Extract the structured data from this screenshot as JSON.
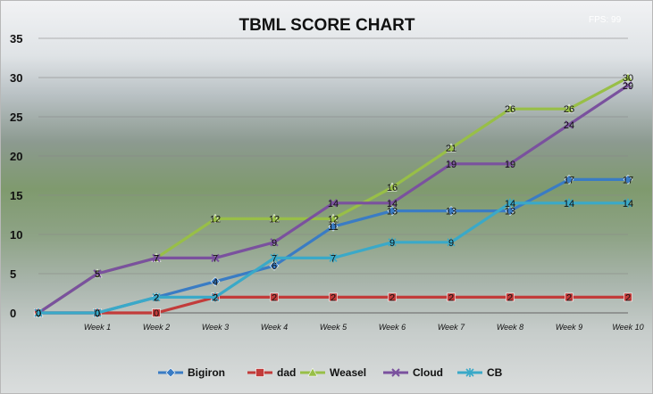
{
  "hud": {
    "fps_text": "FPS: 99"
  },
  "chart_data": {
    "type": "line",
    "title": "TBML SCORE CHART",
    "xlabel": "",
    "ylabel": "",
    "categories": [
      "",
      "Week  1",
      "Week 2",
      "Week 3",
      "Week 4",
      "Week 5",
      "Week 6",
      "Week 7",
      "Week 8",
      "Week 9",
      "Week 10"
    ],
    "ylim": [
      0,
      35
    ],
    "yticks": [
      0,
      5,
      10,
      15,
      20,
      25,
      30,
      35
    ],
    "grid": true,
    "legend_position": "bottom",
    "series": [
      {
        "name": "Bigiron",
        "color": "#3a7cc4",
        "marker": "diamond",
        "values": [
          0,
          0,
          2,
          4,
          6,
          11,
          13,
          13,
          13,
          17,
          17
        ]
      },
      {
        "name": "dad",
        "color": "#c23b3a",
        "marker": "square",
        "values": [
          0,
          0,
          0,
          2,
          2,
          2,
          2,
          2,
          2,
          2,
          2
        ]
      },
      {
        "name": "Weasel",
        "color": "#98bf47",
        "marker": "triangle",
        "values": [
          0,
          5,
          7,
          12,
          12,
          12,
          16,
          21,
          26,
          26,
          30
        ]
      },
      {
        "name": "Cloud",
        "color": "#7a519e",
        "marker": "x",
        "values": [
          0,
          5,
          7,
          7,
          9,
          14,
          14,
          19,
          19,
          24,
          29
        ]
      },
      {
        "name": "CB",
        "color": "#3aa9c8",
        "marker": "star",
        "values": [
          0,
          0,
          2,
          2,
          7,
          7,
          9,
          9,
          14,
          14,
          14
        ]
      }
    ]
  }
}
